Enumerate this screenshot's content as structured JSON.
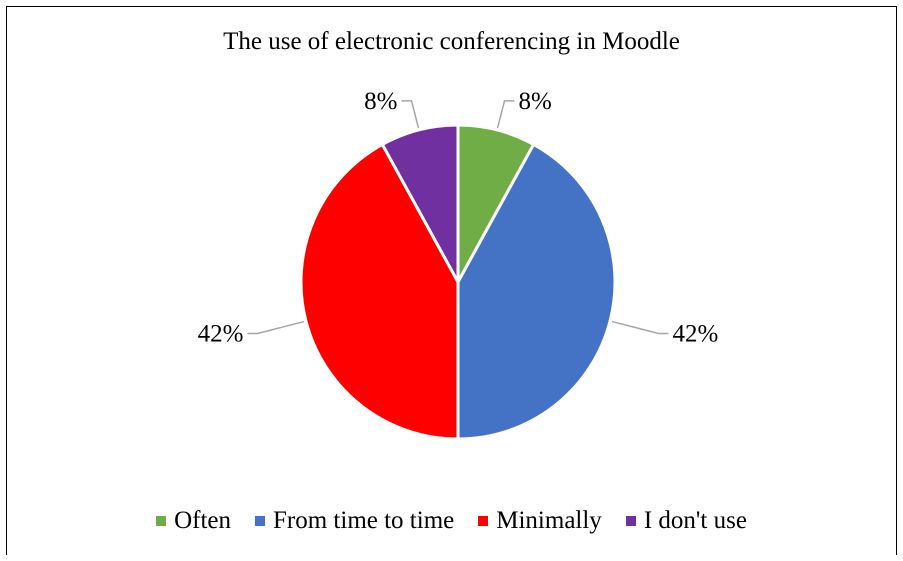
{
  "chart_data": {
    "type": "pie",
    "title": "The use of electronic conferencing in Moodle",
    "categories": [
      "Often",
      "From time to time",
      "Minimally",
      "I don't use"
    ],
    "values": [
      8,
      42,
      42,
      8
    ],
    "labels": [
      "8%",
      "42%",
      "42%",
      "8%"
    ],
    "colors": [
      "#70AD47",
      "#4472C4",
      "#FF0000",
      "#7030A0"
    ],
    "legend_position": "bottom"
  }
}
